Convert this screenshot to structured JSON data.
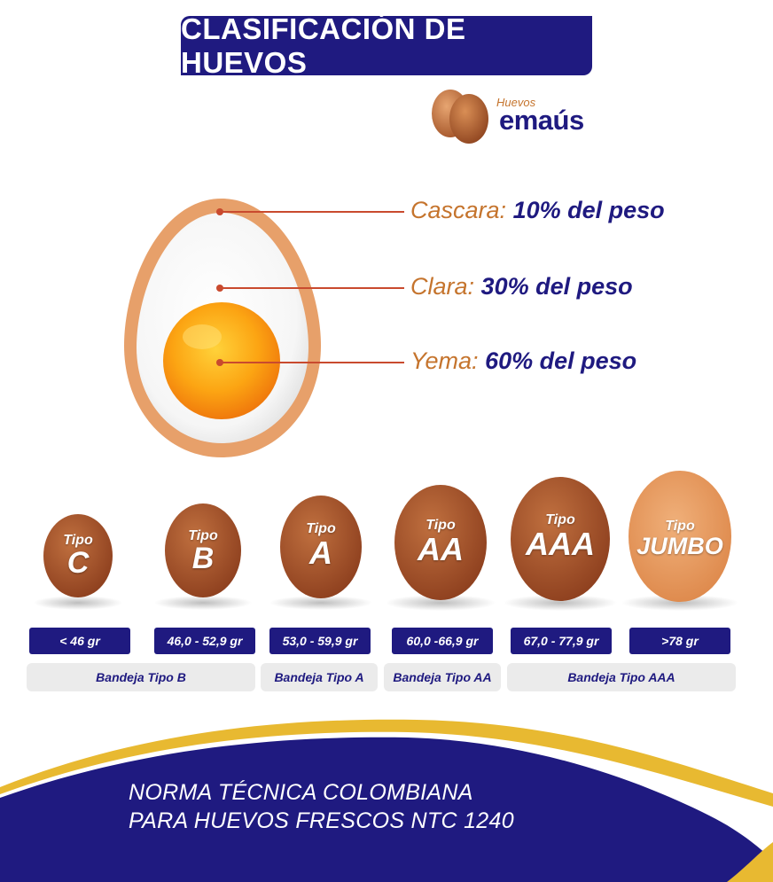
{
  "header": {
    "title": "CLASIFICACIÓN DE HUEVOS"
  },
  "brand": {
    "small": "Huevos",
    "name": "emaús"
  },
  "anatomy": {
    "parts": [
      {
        "name": "Cascara",
        "value": "10% del peso"
      },
      {
        "name": "Clara",
        "value": "30% del peso"
      },
      {
        "name": "Yema",
        "value": "60% del peso"
      }
    ]
  },
  "sizes": [
    {
      "tipo": "Tipo",
      "grade": "C",
      "weight": "< 46 gr"
    },
    {
      "tipo": "Tipo",
      "grade": "B",
      "weight": "46,0 - 52,9 gr"
    },
    {
      "tipo": "Tipo",
      "grade": "A",
      "weight": "53,0 - 59,9 gr"
    },
    {
      "tipo": "Tipo",
      "grade": "AA",
      "weight": "60,0 -66,9 gr"
    },
    {
      "tipo": "Tipo",
      "grade": "AAA",
      "weight": "67,0 - 77,9 gr"
    },
    {
      "tipo": "Tipo",
      "grade": "JUMBO",
      "weight": ">78 gr"
    }
  ],
  "trays": [
    {
      "label": "Bandeja Tipo B"
    },
    {
      "label": "Bandeja Tipo A"
    },
    {
      "label": "Bandeja Tipo AA"
    },
    {
      "label": "Bandeja Tipo AAA"
    }
  ],
  "footer": {
    "line1": "NORMA TÉCNICA COLOMBIANA",
    "line2": "PARA HUEVOS FRESCOS NTC 1240"
  },
  "colors": {
    "navy": "#1f1a80",
    "orange": "#c5742d",
    "gold": "#e8b931",
    "egg_brown": "#a8552e",
    "jumbo": "#e4955a"
  }
}
